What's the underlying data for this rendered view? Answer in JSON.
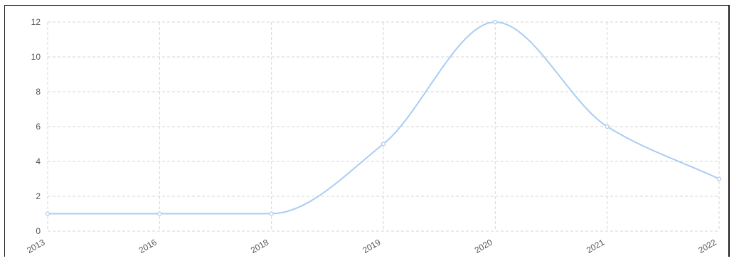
{
  "chart_data": {
    "type": "line",
    "categories": [
      "2013",
      "2016",
      "2018",
      "2019",
      "2020",
      "2021",
      "2022"
    ],
    "series": [
      {
        "values": [
          1,
          1,
          1,
          5,
          12,
          6,
          3
        ]
      }
    ],
    "y_ticks": [
      "0",
      "2",
      "4",
      "6",
      "8",
      "10",
      "12"
    ],
    "ylim": [
      0,
      12
    ],
    "grid": true,
    "smooth": true,
    "colors": {
      "line": "#a9cdf2",
      "point_fill": "#ffffff",
      "grid": "#d6d6d6",
      "axis_text": "#555555"
    }
  }
}
